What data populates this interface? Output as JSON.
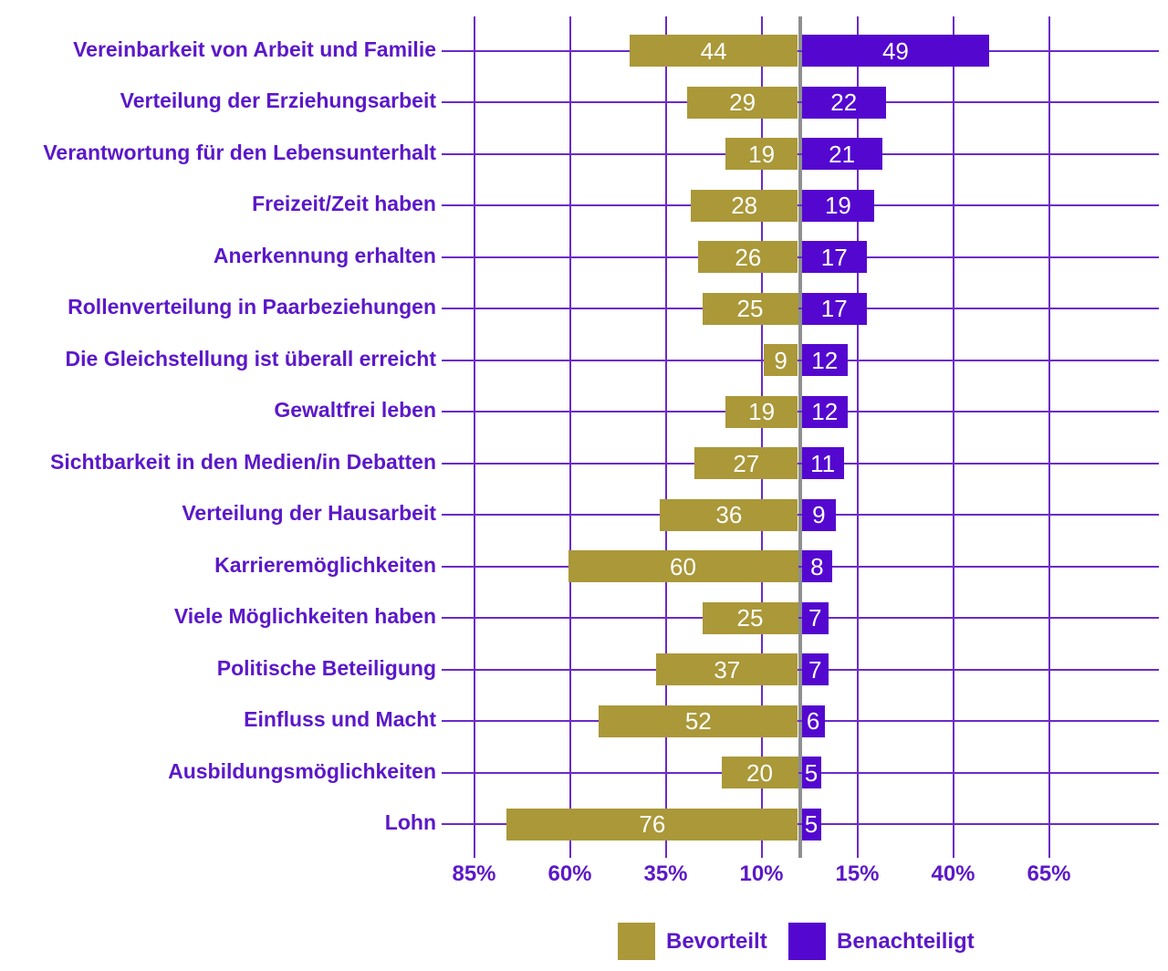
{
  "chart_data": {
    "type": "bar",
    "variant": "horizontal-diverging",
    "categories": [
      "Vereinbarkeit von Arbeit und Familie",
      "Verteilung der Erziehungsarbeit",
      "Verantwortung für den Lebensunterhalt",
      "Freizeit/Zeit haben",
      "Anerkennung erhalten",
      "Rollenverteilung in Paarbeziehungen",
      "Die Gleichstellung ist überall erreicht",
      "Gewaltfrei leben",
      "Sichtbarkeit in den Medien/in Debatten",
      "Verteilung der Hausarbeit",
      "Karrieremöglichkeiten",
      "Viele Möglichkeiten haben",
      "Politische Beteiligung",
      "Einfluss und Macht",
      "Ausbildungsmöglichkeiten",
      "Lohn"
    ],
    "series": [
      {
        "name": "Bevorteilt",
        "side": "left",
        "color": "#aa9839",
        "values": [
          44,
          29,
          19,
          28,
          26,
          25,
          9,
          19,
          27,
          36,
          60,
          25,
          37,
          52,
          20,
          76
        ]
      },
      {
        "name": "Benachteiligt",
        "side": "right",
        "color": "#5408cf",
        "values": [
          49,
          22,
          21,
          19,
          17,
          17,
          12,
          12,
          11,
          9,
          8,
          7,
          7,
          6,
          5,
          5
        ]
      }
    ],
    "x_axis": {
      "tick_labels": [
        "85%",
        "60%",
        "35%",
        "10%",
        "15%",
        "40%",
        "65%"
      ],
      "tick_values": [
        -85,
        -60,
        -35,
        -10,
        15,
        40,
        65
      ],
      "unit": "%"
    },
    "legend": [
      {
        "label": "Bevorteilt",
        "color": "#aa9839"
      },
      {
        "label": "Benachteiligt",
        "color": "#5408cf"
      }
    ],
    "colors": {
      "grid": "#6a2bc7",
      "zero_line": "#8f8f8f",
      "text": "#5b18c9",
      "value_text": "#ffffff",
      "background": "#ffffff"
    },
    "grid": true,
    "legend_position": "bottom",
    "value_labels": "inside-center"
  }
}
